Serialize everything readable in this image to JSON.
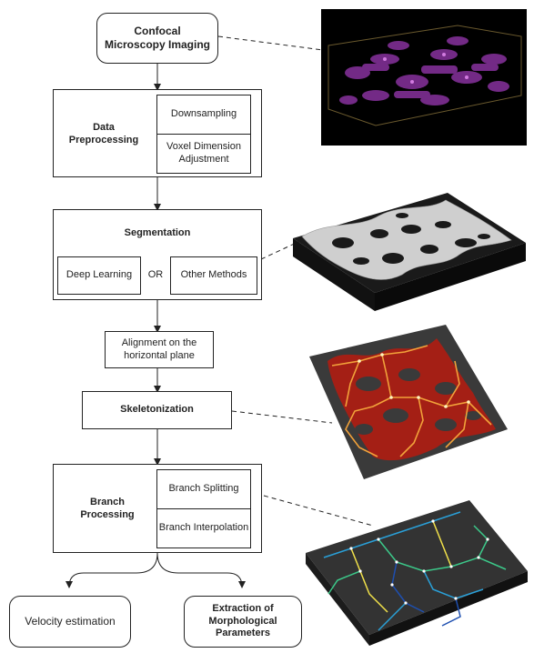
{
  "flow": {
    "imaging": "Confocal Microscopy Imaging",
    "preprocessing": {
      "title": "Data Preprocessing",
      "sub1": "Downsampling",
      "sub2": "Voxel Dimension Adjustment"
    },
    "segmentation": {
      "title": "Segmentation",
      "opt1": "Deep Learning",
      "or": "OR",
      "opt2": "Other Methods"
    },
    "alignment": "Alignment on the horizontal plane",
    "skeletonization": "Skeletonization",
    "branch": {
      "title": "Branch Processing",
      "sub1": "Branch Splitting",
      "sub2": "Branch Interpolation"
    },
    "outputs": {
      "velocity": "Velocity estimation",
      "morph": "Extraction of Morphological Parameters"
    }
  },
  "colors": {
    "microscopy_bg": "#000000",
    "microscopy_fg": "#7a2d8e",
    "segmentation_fg": "#cfcfcf",
    "skeleton_fg": "#b01d12",
    "skeleton_line": "#f2a23a",
    "branch_lines": [
      "#2aa0d8",
      "#f2e24a",
      "#3cc98a",
      "#1e4fb0"
    ]
  }
}
